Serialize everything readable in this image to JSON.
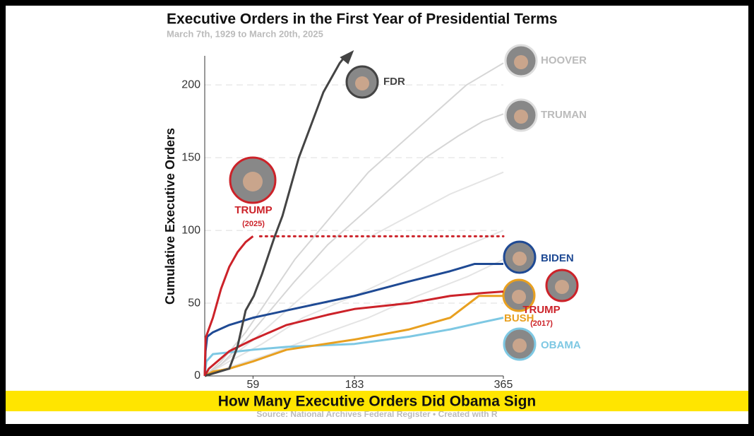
{
  "chart_data": {
    "type": "line",
    "title": "Executive Orders in the First Year of Presidential Terms",
    "subtitle": "March 7th, 1929 to March 20th, 2025",
    "y_label": "Cumulative Executive Orders",
    "source": "Source: National Archives Federal Register  •  Created with R",
    "banner": "How Many Executive Orders Did Obama Sign",
    "xlim": [
      0,
      365
    ],
    "xticks": [
      59,
      183,
      365
    ],
    "ylim": [
      0,
      220
    ],
    "yticks": [
      0,
      50,
      100,
      150,
      200
    ],
    "grid": true,
    "series": [
      {
        "color": "#e4e4e4",
        "x": [
          0,
          20,
          60,
          100,
          150,
          200,
          250,
          300,
          365
        ],
        "values": [
          0,
          8,
          25,
          45,
          70,
          95,
          110,
          125,
          140
        ]
      },
      {
        "color": "#e4e4e4",
        "x": [
          0,
          30,
          70,
          120,
          183,
          240,
          300,
          365
        ],
        "values": [
          0,
          10,
          22,
          40,
          55,
          70,
          85,
          100
        ]
      },
      {
        "color": "#e4e4e4",
        "x": [
          0,
          30,
          80,
          140,
          200,
          260,
          320,
          365
        ],
        "values": [
          0,
          6,
          15,
          28,
          40,
          55,
          68,
          80
        ]
      },
      {
        "name": "HOOVER",
        "color": "#d6d6d6",
        "x": [
          0,
          20,
          50,
          80,
          110,
          140,
          170,
          200,
          240,
          280,
          320,
          365
        ],
        "values": [
          0,
          10,
          30,
          55,
          80,
          100,
          120,
          140,
          160,
          180,
          200,
          215
        ]
      },
      {
        "name": "TRUMAN",
        "color": "#d6d6d6",
        "x": [
          0,
          20,
          50,
          80,
          110,
          150,
          190,
          230,
          270,
          310,
          340,
          365
        ],
        "values": [
          0,
          8,
          25,
          45,
          65,
          90,
          110,
          130,
          150,
          165,
          175,
          180
        ]
      },
      {
        "name": "OBAMA",
        "color": "#7ec8e3",
        "x": [
          0,
          2,
          10,
          59,
          100,
          183,
          250,
          300,
          340,
          365
        ],
        "values": [
          0,
          10,
          15,
          18,
          20,
          22,
          27,
          32,
          37,
          40
        ]
      },
      {
        "name": "BUSH",
        "color": "#e8a020",
        "x": [
          0,
          10,
          30,
          59,
          100,
          183,
          250,
          300,
          335,
          365
        ],
        "values": [
          0,
          3,
          5,
          10,
          18,
          25,
          32,
          40,
          55,
          55
        ]
      },
      {
        "name": "TRUMP",
        "term": "(2017)",
        "color": "#cc2229",
        "x": [
          0,
          5,
          30,
          59,
          100,
          150,
          183,
          250,
          300,
          340,
          365
        ],
        "values": [
          0,
          5,
          17,
          25,
          35,
          42,
          46,
          50,
          55,
          57,
          58
        ]
      },
      {
        "name": "BIDEN",
        "color": "#1f4a94",
        "x": [
          0,
          1,
          3,
          10,
          30,
          59,
          100,
          183,
          250,
          300,
          330,
          365
        ],
        "values": [
          0,
          17,
          27,
          30,
          35,
          40,
          45,
          55,
          65,
          72,
          77,
          77
        ]
      },
      {
        "name": "FDR",
        "color": "#444444",
        "arrow": true,
        "x": [
          0,
          30,
          40,
          50,
          60,
          70,
          85,
          95,
          105,
          115,
          125,
          135,
          145,
          155,
          165,
          172
        ],
        "values": [
          0,
          5,
          20,
          45,
          55,
          70,
          95,
          110,
          130,
          150,
          165,
          180,
          195,
          205,
          215,
          220
        ]
      },
      {
        "name": "TRUMP",
        "term": "(2025)",
        "color": "#cc2229",
        "dotted_extension": true,
        "x": [
          0,
          1,
          10,
          20,
          30,
          40,
          50,
          59
        ],
        "values": [
          0,
          26,
          40,
          60,
          75,
          85,
          92,
          96
        ]
      }
    ]
  }
}
